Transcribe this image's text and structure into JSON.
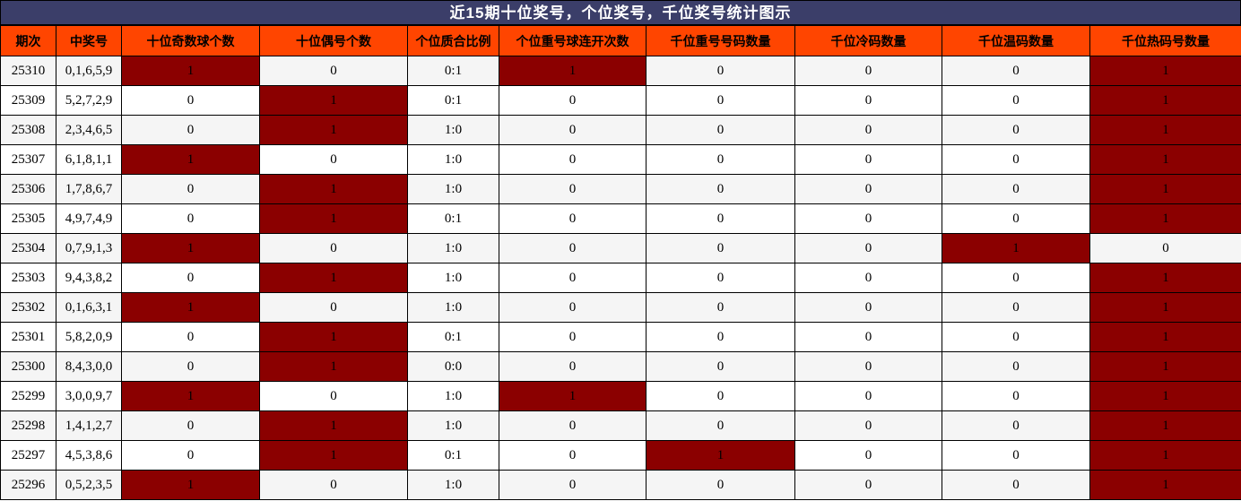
{
  "title": "近15期十位奖号，个位奖号，千位奖号统计图示",
  "colors": {
    "title_bar_bg": "#3B3E69",
    "title_text": "#FFFFFF",
    "header_bg": "#FF4500",
    "header_text": "#000000",
    "highlight_bg": "#8B0000",
    "row_even_bg": "#F5F5F5",
    "row_odd_bg": "#FFFFFF",
    "border": "#000000",
    "cell_text": "#000000"
  },
  "chart_data": {
    "type": "table",
    "title": "近15期十位奖号，个位奖号，千位奖号统计图示",
    "columns": [
      "期次",
      "中奖号",
      "十位奇数球个数",
      "十位偶号个数",
      "个位质合比例",
      "个位重号球连开次数",
      "千位重号号码数量",
      "千位冷码数量",
      "千位温码数量",
      "千位热码号数量"
    ],
    "rows": [
      [
        "25310",
        "0,1,6,5,9",
        "1",
        "0",
        "0:1",
        "1",
        "0",
        "0",
        "0",
        "1"
      ],
      [
        "25309",
        "5,2,7,2,9",
        "0",
        "1",
        "0:1",
        "0",
        "0",
        "0",
        "0",
        "1"
      ],
      [
        "25308",
        "2,3,4,6,5",
        "0",
        "1",
        "1:0",
        "0",
        "0",
        "0",
        "0",
        "1"
      ],
      [
        "25307",
        "6,1,8,1,1",
        "1",
        "0",
        "1:0",
        "0",
        "0",
        "0",
        "0",
        "1"
      ],
      [
        "25306",
        "1,7,8,6,7",
        "0",
        "1",
        "1:0",
        "0",
        "0",
        "0",
        "0",
        "1"
      ],
      [
        "25305",
        "4,9,7,4,9",
        "0",
        "1",
        "0:1",
        "0",
        "0",
        "0",
        "0",
        "1"
      ],
      [
        "25304",
        "0,7,9,1,3",
        "1",
        "0",
        "1:0",
        "0",
        "0",
        "0",
        "1",
        "0"
      ],
      [
        "25303",
        "9,4,3,8,2",
        "0",
        "1",
        "1:0",
        "0",
        "0",
        "0",
        "0",
        "1"
      ],
      [
        "25302",
        "0,1,6,3,1",
        "1",
        "0",
        "1:0",
        "0",
        "0",
        "0",
        "0",
        "1"
      ],
      [
        "25301",
        "5,8,2,0,9",
        "0",
        "1",
        "0:1",
        "0",
        "0",
        "0",
        "0",
        "1"
      ],
      [
        "25300",
        "8,4,3,0,0",
        "0",
        "1",
        "0:0",
        "0",
        "0",
        "0",
        "0",
        "1"
      ],
      [
        "25299",
        "3,0,0,9,7",
        "1",
        "0",
        "1:0",
        "1",
        "0",
        "0",
        "0",
        "1"
      ],
      [
        "25298",
        "1,4,1,2,7",
        "0",
        "1",
        "1:0",
        "0",
        "0",
        "0",
        "0",
        "1"
      ],
      [
        "25297",
        "4,5,3,8,6",
        "0",
        "1",
        "0:1",
        "0",
        "1",
        "0",
        "0",
        "1"
      ],
      [
        "25296",
        "0,5,2,3,5",
        "1",
        "0",
        "1:0",
        "0",
        "0",
        "0",
        "0",
        "1"
      ]
    ],
    "highlighted_cells": [
      [
        2,
        5,
        9
      ],
      [
        3,
        9
      ],
      [
        3,
        9
      ],
      [
        2,
        9
      ],
      [
        3,
        9
      ],
      [
        3,
        9
      ],
      [
        2,
        8
      ],
      [
        3,
        9
      ],
      [
        2,
        9
      ],
      [
        3,
        9
      ],
      [
        3,
        9
      ],
      [
        2,
        5,
        9
      ],
      [
        3,
        9
      ],
      [
        3,
        6,
        9
      ],
      [
        2,
        9
      ]
    ],
    "layout": {
      "grid": true,
      "zebra_first_row": "even",
      "highlight_meaning": "value occurred (dark red cell)"
    }
  }
}
